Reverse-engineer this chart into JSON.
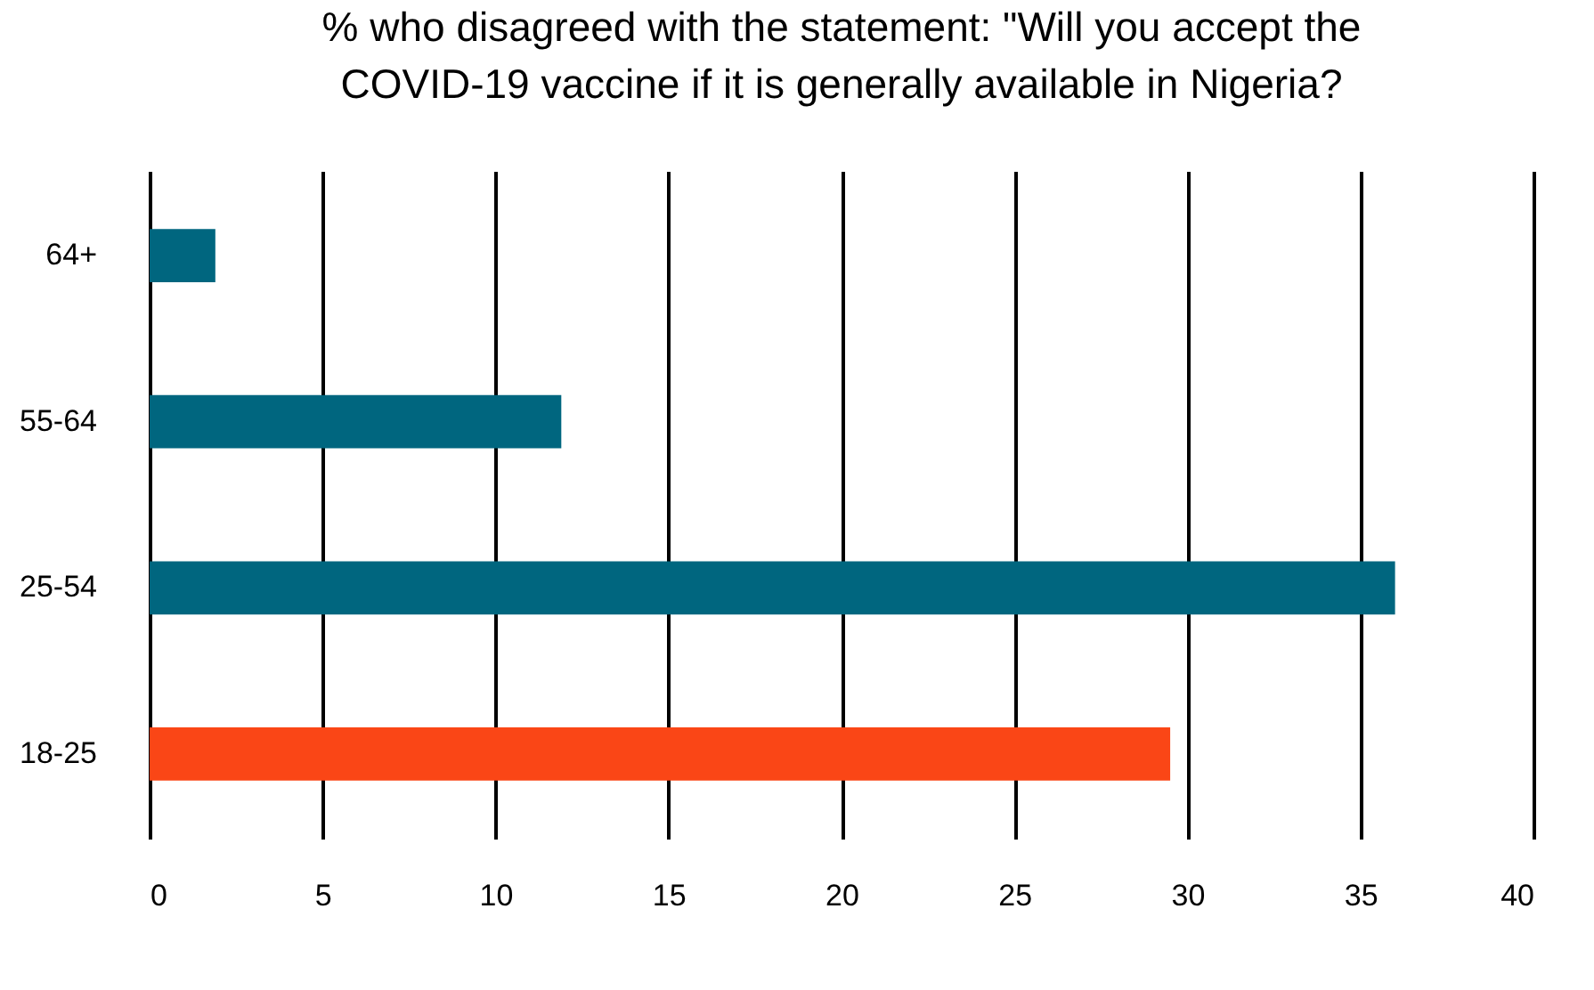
{
  "chart_data": {
    "type": "bar",
    "orientation": "horizontal",
    "title": [
      "% who disagreed with the statement: \"Will you accept the",
      "COVID-19 vaccine if it is generally available in Nigeria?"
    ],
    "categories": [
      "64+",
      "55-64",
      "25-54",
      "18-25"
    ],
    "values": [
      1.9,
      11.9,
      36.0,
      29.5
    ],
    "colors": [
      "#00667f",
      "#00667f",
      "#00667f",
      "#fa4616"
    ],
    "xlim": [
      0,
      40
    ],
    "xticks": [
      0,
      5,
      10,
      15,
      20,
      25,
      30,
      35,
      40
    ],
    "grid": "x"
  }
}
